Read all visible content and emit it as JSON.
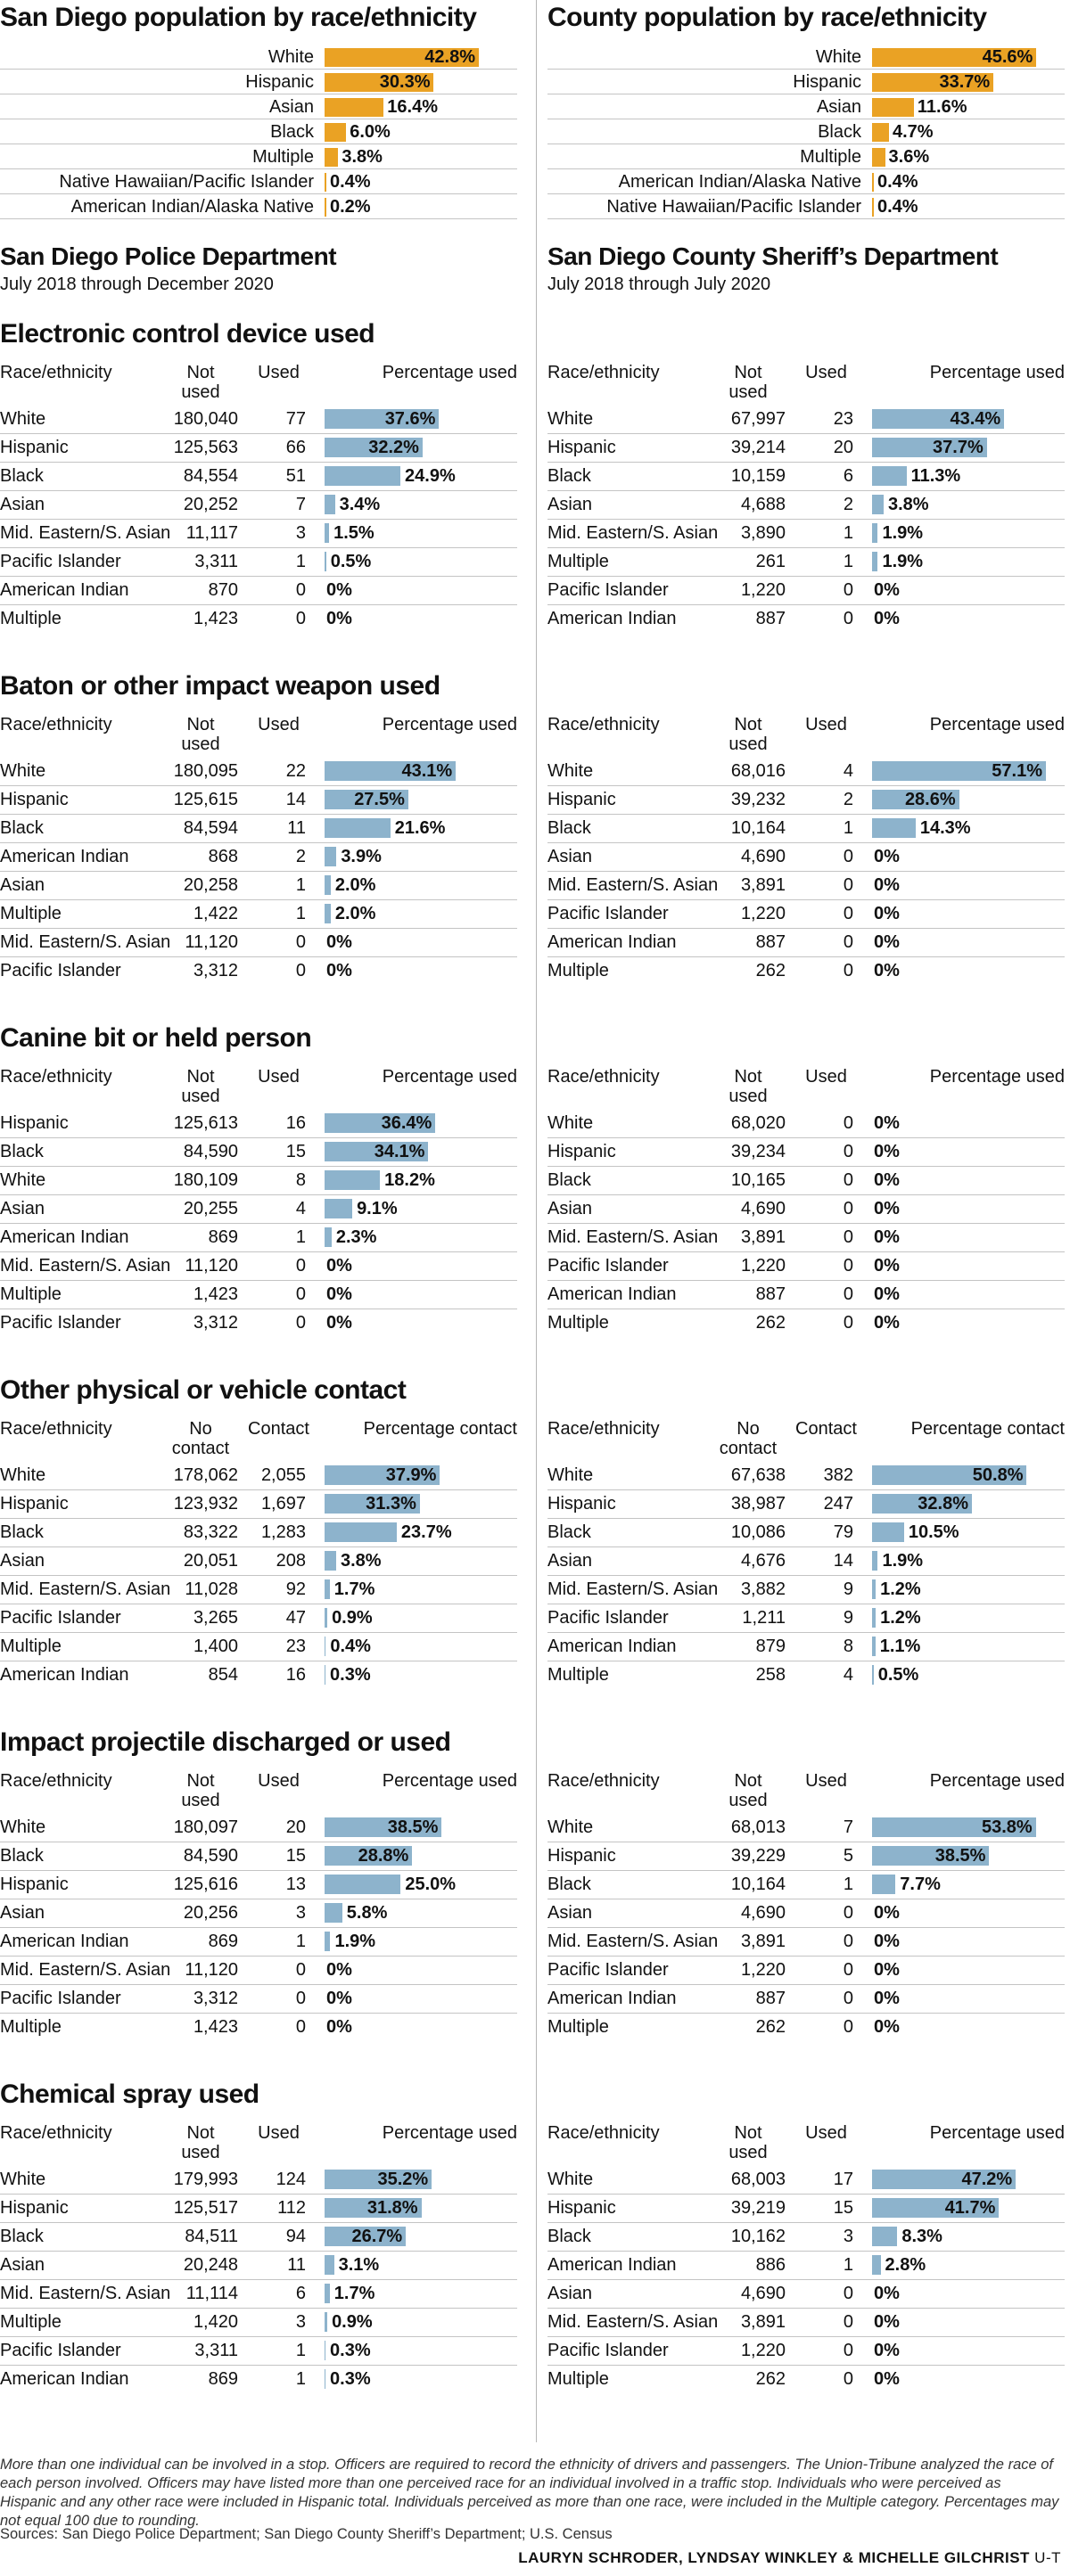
{
  "colors": {
    "population_bar": "#eaa224",
    "usage_bar": "#8db3cc",
    "divider": "#b5b5b5",
    "rule": "#c4c4c4"
  },
  "chart_data": [
    {
      "type": "bar",
      "panel": "left",
      "title": "San Diego population by race/ethnicity",
      "categories": [
        "White",
        "Hispanic",
        "Asian",
        "Black",
        "Multiple",
        "Native Hawaiian/Pacific Islander",
        "American Indian/Alaska Native"
      ],
      "values": [
        42.8,
        30.3,
        16.4,
        6.0,
        3.8,
        0.4,
        0.2
      ],
      "labels": [
        "42.8%",
        "30.3%",
        "16.4%",
        "6.0%",
        "3.8%",
        "0.4%",
        "0.2%"
      ]
    },
    {
      "type": "bar",
      "panel": "right",
      "title": "County population by race/ethnicity",
      "categories": [
        "White",
        "Hispanic",
        "Asian",
        "Black",
        "Multiple",
        "American Indian/Alaska Native",
        "Native Hawaiian/Pacific Islander"
      ],
      "values": [
        45.6,
        33.7,
        11.6,
        4.7,
        3.6,
        0.4,
        0.4
      ],
      "labels": [
        "45.6%",
        "33.7%",
        "11.6%",
        "4.7%",
        "3.6%",
        "0.4%",
        "0.4%"
      ]
    }
  ],
  "departments": {
    "left": {
      "title": "San Diego Police Department",
      "subtitle": "July 2018 through December 2020"
    },
    "right": {
      "title": "San Diego County Sheriff’s Department",
      "subtitle": "July 2018 through July 2020"
    }
  },
  "sections": [
    {
      "title": "Electronic control device used",
      "headers": {
        "race": "Race/ethnicity",
        "not_used": "Not used",
        "used": "Used",
        "pct": "Percentage used"
      },
      "left": [
        {
          "race": "White",
          "not_used": "180,040",
          "used": "77",
          "pct": 37.6,
          "label": "37.6%"
        },
        {
          "race": "Hispanic",
          "not_used": "125,563",
          "used": "66",
          "pct": 32.2,
          "label": "32.2%"
        },
        {
          "race": "Black",
          "not_used": "84,554",
          "used": "51",
          "pct": 24.9,
          "label": "24.9%"
        },
        {
          "race": "Asian",
          "not_used": "20,252",
          "used": "7",
          "pct": 3.4,
          "label": "3.4%"
        },
        {
          "race": "Mid. Eastern/S. Asian",
          "not_used": "11,117",
          "used": "3",
          "pct": 1.5,
          "label": "1.5%"
        },
        {
          "race": "Pacific Islander",
          "not_used": "3,311",
          "used": "1",
          "pct": 0.5,
          "label": "0.5%"
        },
        {
          "race": "American Indian",
          "not_used": "870",
          "used": "0",
          "pct": 0,
          "label": "0%"
        },
        {
          "race": "Multiple",
          "not_used": "1,423",
          "used": "0",
          "pct": 0,
          "label": "0%"
        }
      ],
      "right": [
        {
          "race": "White",
          "not_used": "67,997",
          "used": "23",
          "pct": 43.4,
          "label": "43.4%"
        },
        {
          "race": "Hispanic",
          "not_used": "39,214",
          "used": "20",
          "pct": 37.7,
          "label": "37.7%"
        },
        {
          "race": "Black",
          "not_used": "10,159",
          "used": "6",
          "pct": 11.3,
          "label": "11.3%"
        },
        {
          "race": "Asian",
          "not_used": "4,688",
          "used": "2",
          "pct": 3.8,
          "label": "3.8%"
        },
        {
          "race": "Mid. Eastern/S. Asian",
          "not_used": "3,890",
          "used": "1",
          "pct": 1.9,
          "label": "1.9%"
        },
        {
          "race": "Multiple",
          "not_used": "261",
          "used": "1",
          "pct": 1.9,
          "label": "1.9%"
        },
        {
          "race": "Pacific Islander",
          "not_used": "1,220",
          "used": "0",
          "pct": 0,
          "label": "0%"
        },
        {
          "race": "American Indian",
          "not_used": "887",
          "used": "0",
          "pct": 0,
          "label": "0%"
        }
      ]
    },
    {
      "title": "Baton or other impact weapon used",
      "headers": {
        "race": "Race/ethnicity",
        "not_used": "Not used",
        "used": "Used",
        "pct": "Percentage used"
      },
      "left": [
        {
          "race": "White",
          "not_used": "180,095",
          "used": "22",
          "pct": 43.1,
          "label": "43.1%"
        },
        {
          "race": "Hispanic",
          "not_used": "125,615",
          "used": "14",
          "pct": 27.5,
          "label": "27.5%"
        },
        {
          "race": "Black",
          "not_used": "84,594",
          "used": "11",
          "pct": 21.6,
          "label": "21.6%"
        },
        {
          "race": "American Indian",
          "not_used": "868",
          "used": "2",
          "pct": 3.9,
          "label": "3.9%"
        },
        {
          "race": "Asian",
          "not_used": "20,258",
          "used": "1",
          "pct": 2.0,
          "label": "2.0%"
        },
        {
          "race": "Multiple",
          "not_used": "1,422",
          "used": "1",
          "pct": 2.0,
          "label": "2.0%"
        },
        {
          "race": "Mid. Eastern/S. Asian",
          "not_used": "11,120",
          "used": "0",
          "pct": 0,
          "label": "0%"
        },
        {
          "race": "Pacific Islander",
          "not_used": "3,312",
          "used": "0",
          "pct": 0,
          "label": "0%"
        }
      ],
      "right": [
        {
          "race": "White",
          "not_used": "68,016",
          "used": "4",
          "pct": 57.1,
          "label": "57.1%"
        },
        {
          "race": "Hispanic",
          "not_used": "39,232",
          "used": "2",
          "pct": 28.6,
          "label": "28.6%"
        },
        {
          "race": "Black",
          "not_used": "10,164",
          "used": "1",
          "pct": 14.3,
          "label": "14.3%"
        },
        {
          "race": "Asian",
          "not_used": "4,690",
          "used": "0",
          "pct": 0,
          "label": "0%"
        },
        {
          "race": "Mid. Eastern/S. Asian",
          "not_used": "3,891",
          "used": "0",
          "pct": 0,
          "label": "0%"
        },
        {
          "race": "Pacific Islander",
          "not_used": "1,220",
          "used": "0",
          "pct": 0,
          "label": "0%"
        },
        {
          "race": "American Indian",
          "not_used": "887",
          "used": "0",
          "pct": 0,
          "label": "0%"
        },
        {
          "race": "Multiple",
          "not_used": "262",
          "used": "0",
          "pct": 0,
          "label": "0%"
        }
      ]
    },
    {
      "title": "Canine bit or held person",
      "headers": {
        "race": "Race/ethnicity",
        "not_used": "Not used",
        "used": "Used",
        "pct": "Percentage used"
      },
      "left": [
        {
          "race": "Hispanic",
          "not_used": "125,613",
          "used": "16",
          "pct": 36.4,
          "label": "36.4%"
        },
        {
          "race": "Black",
          "not_used": "84,590",
          "used": "15",
          "pct": 34.1,
          "label": "34.1%"
        },
        {
          "race": "White",
          "not_used": "180,109",
          "used": "8",
          "pct": 18.2,
          "label": "18.2%"
        },
        {
          "race": "Asian",
          "not_used": "20,255",
          "used": "4",
          "pct": 9.1,
          "label": "9.1%"
        },
        {
          "race": "American Indian",
          "not_used": "869",
          "used": "1",
          "pct": 2.3,
          "label": "2.3%"
        },
        {
          "race": "Mid. Eastern/S. Asian",
          "not_used": "11,120",
          "used": "0",
          "pct": 0,
          "label": "0%"
        },
        {
          "race": "Multiple",
          "not_used": "1,423",
          "used": "0",
          "pct": 0,
          "label": "0%"
        },
        {
          "race": "Pacific Islander",
          "not_used": "3,312",
          "used": "0",
          "pct": 0,
          "label": "0%"
        }
      ],
      "right": [
        {
          "race": "White",
          "not_used": "68,020",
          "used": "0",
          "pct": 0,
          "label": "0%"
        },
        {
          "race": "Hispanic",
          "not_used": "39,234",
          "used": "0",
          "pct": 0,
          "label": "0%"
        },
        {
          "race": "Black",
          "not_used": "10,165",
          "used": "0",
          "pct": 0,
          "label": "0%"
        },
        {
          "race": "Asian",
          "not_used": "4,690",
          "used": "0",
          "pct": 0,
          "label": "0%"
        },
        {
          "race": "Mid. Eastern/S. Asian",
          "not_used": "3,891",
          "used": "0",
          "pct": 0,
          "label": "0%"
        },
        {
          "race": "Pacific Islander",
          "not_used": "1,220",
          "used": "0",
          "pct": 0,
          "label": "0%"
        },
        {
          "race": "American Indian",
          "not_used": "887",
          "used": "0",
          "pct": 0,
          "label": "0%"
        },
        {
          "race": "Multiple",
          "not_used": "262",
          "used": "0",
          "pct": 0,
          "label": "0%"
        }
      ]
    },
    {
      "title": "Other physical or vehicle contact",
      "headers": {
        "race": "Race/ethnicity",
        "not_used": "No contact",
        "used": "Contact",
        "pct": "Percentage contact"
      },
      "left": [
        {
          "race": "White",
          "not_used": "178,062",
          "used": "2,055",
          "pct": 37.9,
          "label": "37.9%"
        },
        {
          "race": "Hispanic",
          "not_used": "123,932",
          "used": "1,697",
          "pct": 31.3,
          "label": "31.3%"
        },
        {
          "race": "Black",
          "not_used": "83,322",
          "used": "1,283",
          "pct": 23.7,
          "label": "23.7%"
        },
        {
          "race": "Asian",
          "not_used": "20,051",
          "used": "208",
          "pct": 3.8,
          "label": "3.8%"
        },
        {
          "race": "Mid. Eastern/S. Asian",
          "not_used": "11,028",
          "used": "92",
          "pct": 1.7,
          "label": "1.7%"
        },
        {
          "race": "Pacific Islander",
          "not_used": "3,265",
          "used": "47",
          "pct": 0.9,
          "label": "0.9%"
        },
        {
          "race": "Multiple",
          "not_used": "1,400",
          "used": "23",
          "pct": 0.4,
          "label": "0.4%"
        },
        {
          "race": "American Indian",
          "not_used": "854",
          "used": "16",
          "pct": 0.3,
          "label": "0.3%"
        }
      ],
      "right": [
        {
          "race": "White",
          "not_used": "67,638",
          "used": "382",
          "pct": 50.8,
          "label": "50.8%"
        },
        {
          "race": "Hispanic",
          "not_used": "38,987",
          "used": "247",
          "pct": 32.8,
          "label": "32.8%"
        },
        {
          "race": "Black",
          "not_used": "10,086",
          "used": "79",
          "pct": 10.5,
          "label": "10.5%"
        },
        {
          "race": "Asian",
          "not_used": "4,676",
          "used": "14",
          "pct": 1.9,
          "label": "1.9%"
        },
        {
          "race": "Mid. Eastern/S. Asian",
          "not_used": "3,882",
          "used": "9",
          "pct": 1.2,
          "label": "1.2%"
        },
        {
          "race": "Pacific Islander",
          "not_used": "1,211",
          "used": "9",
          "pct": 1.2,
          "label": "1.2%"
        },
        {
          "race": "American Indian",
          "not_used": "879",
          "used": "8",
          "pct": 1.1,
          "label": "1.1%"
        },
        {
          "race": "Multiple",
          "not_used": "258",
          "used": "4",
          "pct": 0.5,
          "label": "0.5%"
        }
      ]
    },
    {
      "title": "Impact projectile discharged or used",
      "headers": {
        "race": "Race/ethnicity",
        "not_used": "Not used",
        "used": "Used",
        "pct": "Percentage used"
      },
      "left": [
        {
          "race": "White",
          "not_used": "180,097",
          "used": "20",
          "pct": 38.5,
          "label": "38.5%"
        },
        {
          "race": "Black",
          "not_used": "84,590",
          "used": "15",
          "pct": 28.8,
          "label": "28.8%"
        },
        {
          "race": "Hispanic",
          "not_used": "125,616",
          "used": "13",
          "pct": 25.0,
          "label": "25.0%"
        },
        {
          "race": "Asian",
          "not_used": "20,256",
          "used": "3",
          "pct": 5.8,
          "label": "5.8%"
        },
        {
          "race": "American Indian",
          "not_used": "869",
          "used": "1",
          "pct": 1.9,
          "label": "1.9%"
        },
        {
          "race": "Mid. Eastern/S. Asian",
          "not_used": "11,120",
          "used": "0",
          "pct": 0,
          "label": "0%"
        },
        {
          "race": "Pacific Islander",
          "not_used": "3,312",
          "used": "0",
          "pct": 0,
          "label": "0%"
        },
        {
          "race": "Multiple",
          "not_used": "1,423",
          "used": "0",
          "pct": 0,
          "label": "0%"
        }
      ],
      "right": [
        {
          "race": "White",
          "not_used": "68,013",
          "used": "7",
          "pct": 53.8,
          "label": "53.8%"
        },
        {
          "race": "Hispanic",
          "not_used": "39,229",
          "used": "5",
          "pct": 38.5,
          "label": "38.5%"
        },
        {
          "race": "Black",
          "not_used": "10,164",
          "used": "1",
          "pct": 7.7,
          "label": "7.7%"
        },
        {
          "race": "Asian",
          "not_used": "4,690",
          "used": "0",
          "pct": 0,
          "label": "0%"
        },
        {
          "race": "Mid. Eastern/S. Asian",
          "not_used": "3,891",
          "used": "0",
          "pct": 0,
          "label": "0%"
        },
        {
          "race": "Pacific Islander",
          "not_used": "1,220",
          "used": "0",
          "pct": 0,
          "label": "0%"
        },
        {
          "race": "American Indian",
          "not_used": "887",
          "used": "0",
          "pct": 0,
          "label": "0%"
        },
        {
          "race": "Multiple",
          "not_used": "262",
          "used": "0",
          "pct": 0,
          "label": "0%"
        }
      ]
    },
    {
      "title": "Chemical spray used",
      "headers": {
        "race": "Race/ethnicity",
        "not_used": "Not used",
        "used": "Used",
        "pct": "Percentage used"
      },
      "left": [
        {
          "race": "White",
          "not_used": "179,993",
          "used": "124",
          "pct": 35.2,
          "label": "35.2%"
        },
        {
          "race": "Hispanic",
          "not_used": "125,517",
          "used": "112",
          "pct": 31.8,
          "label": "31.8%"
        },
        {
          "race": "Black",
          "not_used": "84,511",
          "used": "94",
          "pct": 26.7,
          "label": "26.7%"
        },
        {
          "race": "Asian",
          "not_used": "20,248",
          "used": "11",
          "pct": 3.1,
          "label": "3.1%"
        },
        {
          "race": "Mid. Eastern/S. Asian",
          "not_used": "11,114",
          "used": "6",
          "pct": 1.7,
          "label": "1.7%"
        },
        {
          "race": "Multiple",
          "not_used": "1,420",
          "used": "3",
          "pct": 0.9,
          "label": "0.9%"
        },
        {
          "race": "Pacific Islander",
          "not_used": "3,311",
          "used": "1",
          "pct": 0.3,
          "label": "0.3%"
        },
        {
          "race": "American Indian",
          "not_used": "869",
          "used": "1",
          "pct": 0.3,
          "label": "0.3%"
        }
      ],
      "right": [
        {
          "race": "White",
          "not_used": "68,003",
          "used": "17",
          "pct": 47.2,
          "label": "47.2%"
        },
        {
          "race": "Hispanic",
          "not_used": "39,219",
          "used": "15",
          "pct": 41.7,
          "label": "41.7%"
        },
        {
          "race": "Black",
          "not_used": "10,162",
          "used": "3",
          "pct": 8.3,
          "label": "8.3%"
        },
        {
          "race": "American Indian",
          "not_used": "886",
          "used": "1",
          "pct": 2.8,
          "label": "2.8%"
        },
        {
          "race": "Asian",
          "not_used": "4,690",
          "used": "0",
          "pct": 0,
          "label": "0%"
        },
        {
          "race": "Mid. Eastern/S. Asian",
          "not_used": "3,891",
          "used": "0",
          "pct": 0,
          "label": "0%"
        },
        {
          "race": "Pacific Islander",
          "not_used": "1,220",
          "used": "0",
          "pct": 0,
          "label": "0%"
        },
        {
          "race": "Multiple",
          "not_used": "262",
          "used": "0",
          "pct": 0,
          "label": "0%"
        }
      ]
    }
  ],
  "footnote": "More than one individual can be involved in a stop. Officers are required to record the ethnicity of drivers and passengers. The Union-Tribune analyzed the race of each person involved. Officers may have listed more than one perceived race for an individual involved in a traffic stop. Individuals who were perceived as Hispanic and any other race were included in Hispanic total. Individuals perceived as more than one race, were included in the Multiple category. Percentages may not equal 100 due to rounding.",
  "sources": "Sources: San Diego Police Department; San Diego County Sheriff’s Department; U.S. Census",
  "credit": {
    "names": "LAURYN SCHRODER, LYNDSAY WINKLEY & MICHELLE GILCHRIST",
    "outlet": "U-T"
  }
}
